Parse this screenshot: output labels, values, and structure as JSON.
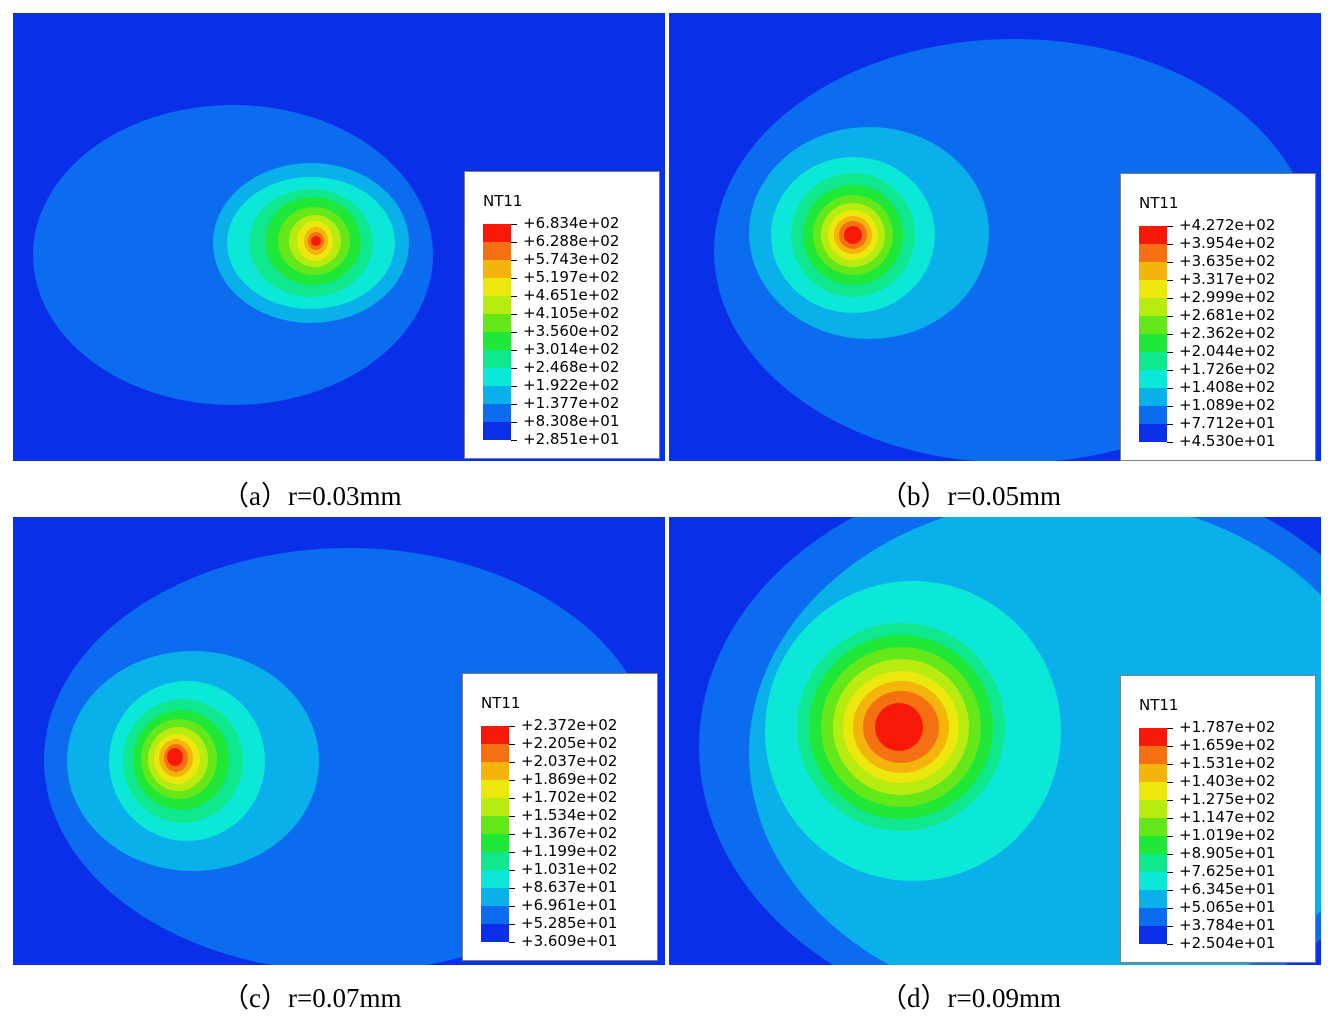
{
  "colors": {
    "background": "#0a2fe8",
    "scale": [
      "#0a2fe8",
      "#0c6cf0",
      "#0ab0ea",
      "#0ce8d8",
      "#10e890",
      "#20e838",
      "#64e81a",
      "#b8ec10",
      "#ece80e",
      "#f4b40c",
      "#f47010",
      "#f81808"
    ]
  },
  "panels": [
    {
      "id": "a",
      "legend_title": "NT11",
      "legend_values": [
        "+6.834e+02",
        "+6.288e+02",
        "+5.743e+02",
        "+5.197e+02",
        "+4.651e+02",
        "+4.105e+02",
        "+3.560e+02",
        "+3.014e+02",
        "+2.468e+02",
        "+1.922e+02",
        "+1.377e+02",
        "+8.308e+01",
        "+2.851e+01"
      ],
      "caption": "（a）r=0.03mm"
    },
    {
      "id": "b",
      "legend_title": "NT11",
      "legend_values": [
        "+4.272e+02",
        "+3.954e+02",
        "+3.635e+02",
        "+3.317e+02",
        "+2.999e+02",
        "+2.681e+02",
        "+2.362e+02",
        "+2.044e+02",
        "+1.726e+02",
        "+1.408e+02",
        "+1.089e+02",
        "+7.712e+01",
        "+4.530e+01"
      ],
      "caption": "（b）r=0.05mm"
    },
    {
      "id": "c",
      "legend_title": "NT11",
      "legend_values": [
        "+2.372e+02",
        "+2.205e+02",
        "+2.037e+02",
        "+1.869e+02",
        "+1.702e+02",
        "+1.534e+02",
        "+1.367e+02",
        "+1.199e+02",
        "+1.031e+02",
        "+8.637e+01",
        "+6.961e+01",
        "+5.285e+01",
        "+3.609e+01"
      ],
      "caption": "（c）r=0.07mm"
    },
    {
      "id": "d",
      "legend_title": "NT11",
      "legend_values": [
        "+1.787e+02",
        "+1.659e+02",
        "+1.531e+02",
        "+1.403e+02",
        "+1.275e+02",
        "+1.147e+02",
        "+1.019e+02",
        "+8.905e+01",
        "+7.625e+01",
        "+6.345e+01",
        "+5.065e+01",
        "+3.784e+01",
        "+2.504e+01"
      ],
      "caption": "（d）r=0.09mm"
    }
  ]
}
